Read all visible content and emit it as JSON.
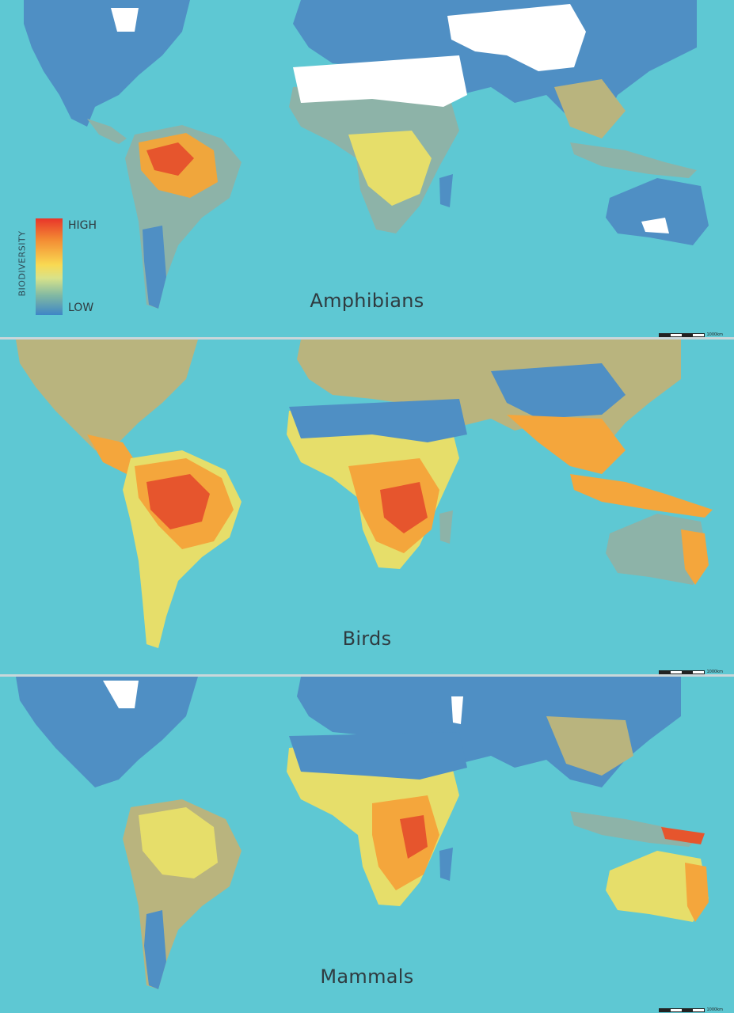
{
  "legend": {
    "axis_label": "BIODIVERSITY",
    "high_label": "HIGH",
    "low_label": "LOW",
    "colors": [
      "#e8352a",
      "#f38b33",
      "#f9d952",
      "#d8e28a",
      "#80b8a3",
      "#3e86c6"
    ]
  },
  "panels": [
    {
      "title": "Amphibians",
      "scale_label": "1000km"
    },
    {
      "title": "Birds",
      "scale_label": "1000km"
    },
    {
      "title": "Mammals",
      "scale_label": "1000km"
    }
  ],
  "colors": {
    "ocean": "#5ec8d3",
    "shelf": "#a9dcd6",
    "low": "#4f8fc4",
    "mid_low": "#8db3a8",
    "mid": "#e6de6a",
    "mid_high": "#f4a63c",
    "high": "#e6552d",
    "no_data": "#ffffff"
  }
}
